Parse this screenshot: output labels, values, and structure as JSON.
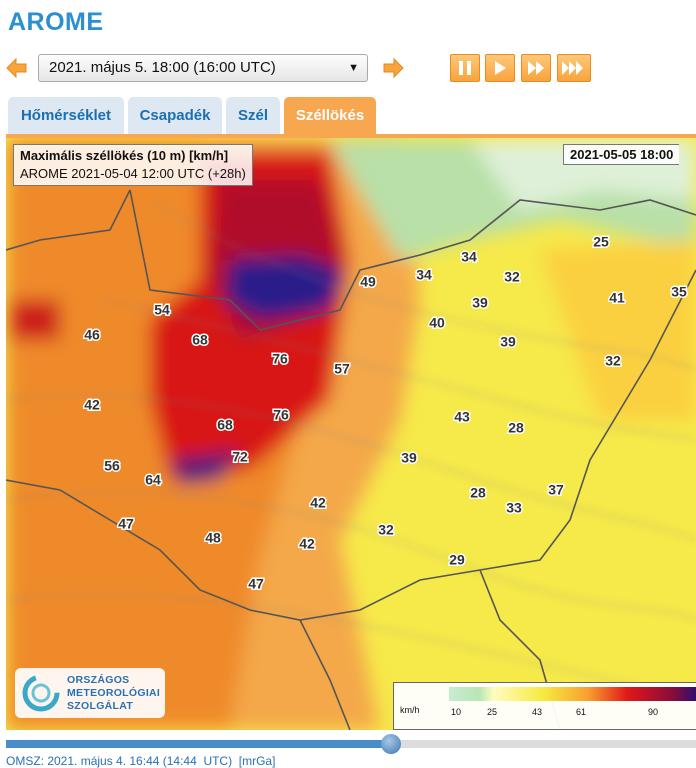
{
  "header": {
    "title": "AROME"
  },
  "controls": {
    "date_select": "2021. május 5. 18:00 (16:00  UTC)"
  },
  "tabs": [
    "Hőmérséklet",
    "Csapadék",
    "Szél",
    "Széllökés"
  ],
  "map": {
    "title": "Maximális széllökés (10 m) [km/h]",
    "run": "AROME 2021-05-04 12:00 UTC (+28h)",
    "valid": "2021-05-05 18:00",
    "labels": [
      49,
      34,
      34,
      32,
      25,
      41,
      35,
      54,
      46,
      68,
      39,
      40,
      39,
      76,
      57,
      32,
      42,
      76,
      68,
      43,
      28,
      72,
      56,
      39,
      64,
      28,
      37,
      33,
      42,
      47,
      32,
      48,
      42,
      29,
      47
    ]
  },
  "logo": {
    "lines": [
      "ORSZÁGOS",
      "METEOROLÓGIAI",
      "SZOLGÁLAT"
    ]
  },
  "legend": {
    "unit": "km/h",
    "ticks": [
      10,
      25,
      43,
      61,
      90
    ]
  },
  "footer": "OMSZ: 2021. május 4. 16:44 (14:44  UTC)  [mrGa]"
}
